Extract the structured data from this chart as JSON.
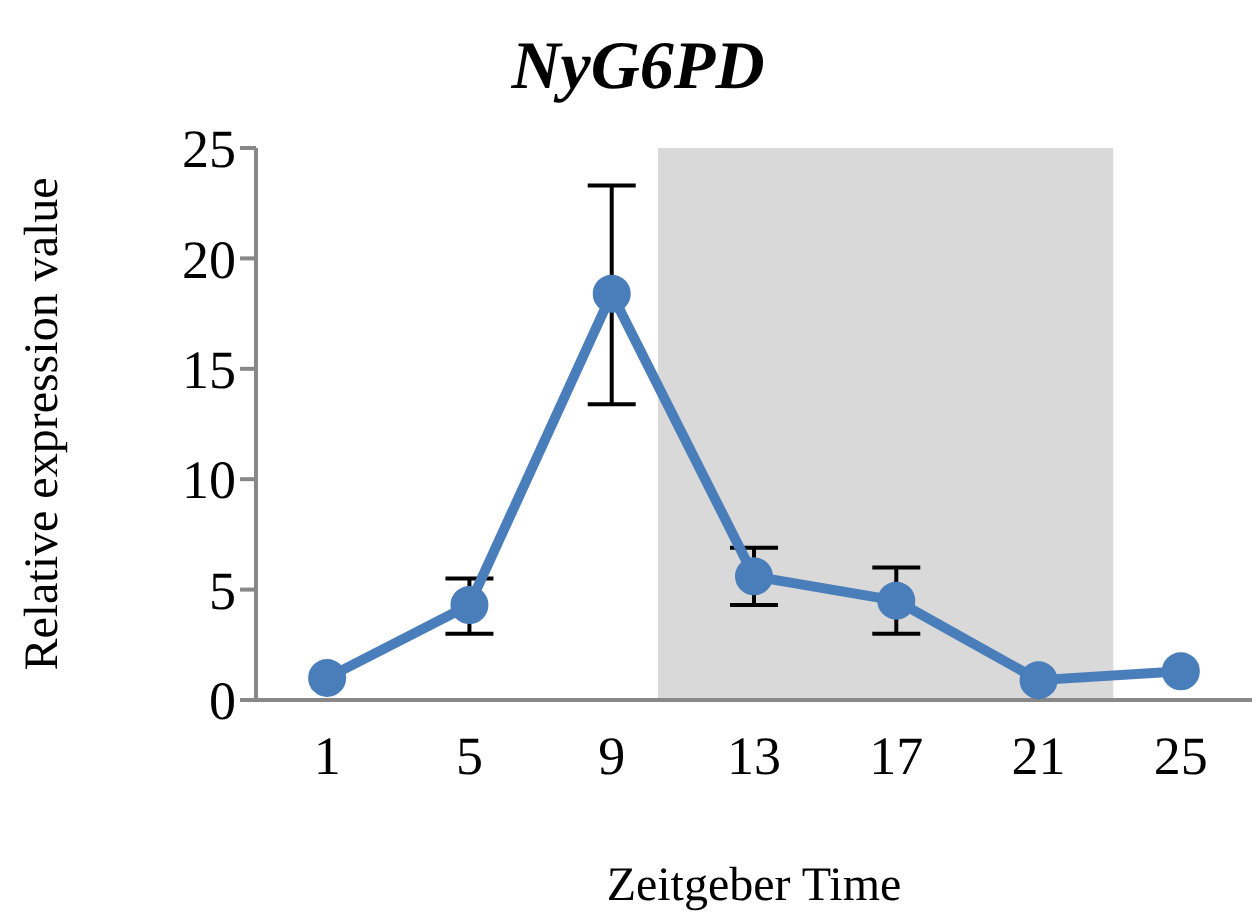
{
  "chart_data": {
    "type": "line",
    "title": "NyG6PD",
    "xlabel": "Zeitgeber Time",
    "ylabel": "Relative expression value",
    "x": [
      1,
      5,
      9,
      13,
      17,
      21,
      25
    ],
    "xlim": [
      -1,
      27
    ],
    "xticks": [
      1,
      5,
      9,
      13,
      17,
      21,
      25
    ],
    "ylim": [
      0,
      25
    ],
    "yticks": [
      0,
      5,
      10,
      15,
      20,
      25
    ],
    "grid": false,
    "legend": false,
    "marker": "circle",
    "line_style": "solid",
    "series": [
      {
        "color": "#4a7ebb",
        "values": [
          1.0,
          4.3,
          18.4,
          5.6,
          4.5,
          0.9,
          1.3
        ],
        "errors": [
          null,
          [
            3.0,
            5.5
          ],
          [
            13.4,
            23.3
          ],
          [
            4.3,
            6.9
          ],
          [
            3.0,
            6.0
          ],
          null,
          null
        ]
      }
    ],
    "bands": [
      {
        "axis": "x",
        "from": 10.3,
        "to": 23.1,
        "color": "#d9d9d9"
      }
    ]
  }
}
